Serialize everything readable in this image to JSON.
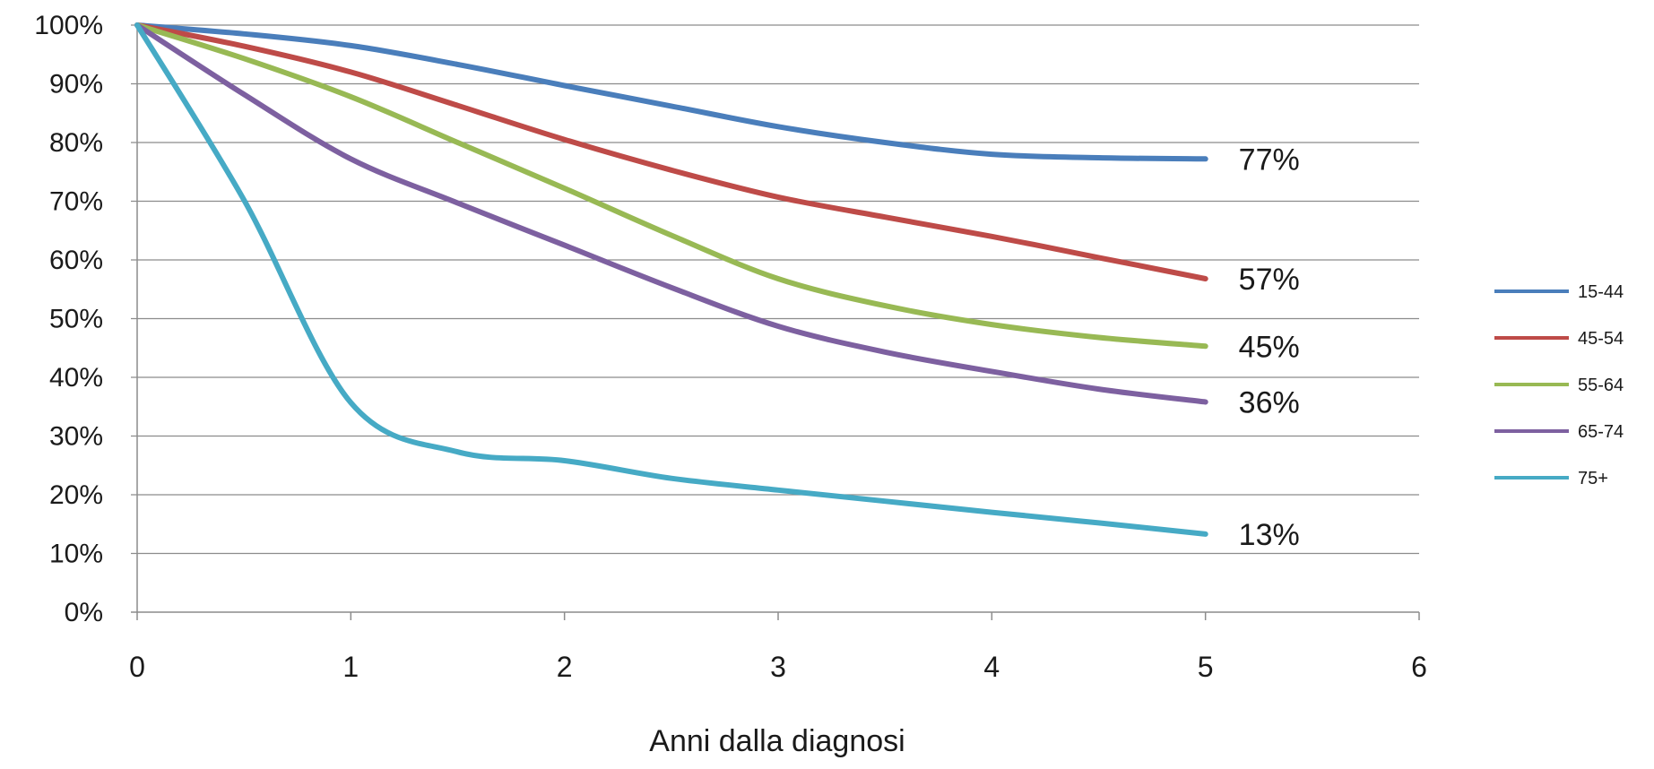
{
  "chart_data": {
    "type": "line",
    "title": "",
    "xlabel": "Anni dalla diagnosi",
    "ylabel": "",
    "xlim": [
      0,
      6
    ],
    "ylim": [
      0,
      100
    ],
    "x_ticks": [
      "0",
      "1",
      "2",
      "3",
      "4",
      "5",
      "6"
    ],
    "y_ticks": [
      "0%",
      "10%",
      "20%",
      "30%",
      "40%",
      "50%",
      "60%",
      "70%",
      "80%",
      "90%",
      "100%"
    ],
    "grid": true,
    "legend_position": "right",
    "x": [
      0,
      0.5,
      1,
      1.5,
      2,
      2.5,
      3,
      3.5,
      4,
      4.5,
      5
    ],
    "series": [
      {
        "name": "15-44",
        "color": "#4A7EBB",
        "values": [
          100,
          98.5,
          96.5,
          93.3,
          89.7,
          86.2,
          82.7,
          80.0,
          78.0,
          77.4,
          77.2
        ],
        "end_label": "77%"
      },
      {
        "name": "45-54",
        "color": "#BE4B48",
        "values": [
          100,
          96.4,
          92.0,
          86.3,
          80.5,
          75.3,
          70.7,
          67.3,
          64.0,
          60.4,
          56.8
        ],
        "end_label": "57%"
      },
      {
        "name": "55-64",
        "color": "#98B954",
        "values": [
          100,
          94.3,
          87.8,
          80.0,
          72.2,
          64.2,
          56.8,
          52.2,
          49.0,
          46.8,
          45.3
        ],
        "end_label": "45%"
      },
      {
        "name": "65-74",
        "color": "#7D60A0",
        "values": [
          100,
          88.2,
          77.2,
          69.7,
          62.5,
          55.3,
          48.7,
          44.3,
          41.0,
          38.0,
          35.8
        ],
        "end_label": "36%"
      },
      {
        "name": "75+",
        "color": "#46AAC5",
        "values": [
          100,
          70.2,
          35.7,
          27.3,
          25.8,
          22.8,
          20.8,
          18.9,
          17.0,
          15.2,
          13.3
        ],
        "end_label": "13%"
      }
    ]
  }
}
